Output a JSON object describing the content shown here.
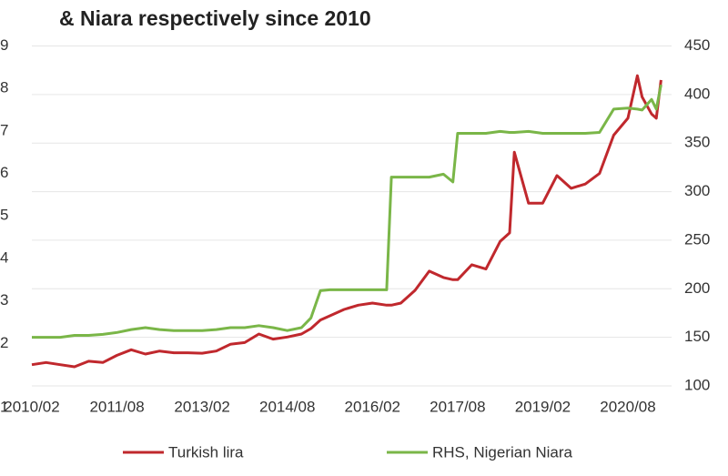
{
  "chart_data": {
    "type": "line",
    "title": "& Niara respectively since 2010",
    "x": [
      "2010/02",
      "2010/05",
      "2010/08",
      "2010/11",
      "2011/02",
      "2011/05",
      "2011/08",
      "2011/11",
      "2012/02",
      "2012/05",
      "2012/08",
      "2012/11",
      "2013/02",
      "2013/05",
      "2013/08",
      "2013/11",
      "2014/02",
      "2014/05",
      "2014/08",
      "2014/11",
      "2015/01",
      "2015/03",
      "2015/05",
      "2015/08",
      "2015/11",
      "2016/02",
      "2016/05",
      "2016/06",
      "2016/08",
      "2016/11",
      "2017/02",
      "2017/05",
      "2017/07",
      "2017/08",
      "2017/11",
      "2018/02",
      "2018/05",
      "2018/07",
      "2018/08",
      "2018/11",
      "2019/02",
      "2019/05",
      "2019/08",
      "2019/11",
      "2020/02",
      "2020/05",
      "2020/08",
      "2020/10",
      "2020/11",
      "2021/01",
      "2021/02",
      "2021/03"
    ],
    "series": [
      {
        "name": "Turkish lira",
        "color": "#c0282d",
        "values": [
          1.5,
          1.55,
          1.5,
          1.45,
          1.58,
          1.55,
          1.72,
          1.85,
          1.75,
          1.82,
          1.78,
          1.78,
          1.77,
          1.82,
          1.98,
          2.02,
          2.22,
          2.1,
          2.15,
          2.22,
          2.35,
          2.55,
          2.65,
          2.8,
          2.9,
          2.95,
          2.9,
          2.9,
          2.95,
          3.25,
          3.7,
          3.55,
          3.5,
          3.5,
          3.85,
          3.75,
          4.4,
          4.6,
          6.5,
          5.3,
          5.3,
          5.95,
          5.65,
          5.75,
          6.0,
          6.9,
          7.3,
          8.3,
          7.8,
          7.4,
          7.3,
          8.2
        ]
      },
      {
        "name": "RHS, Nigerian Niara",
        "color": "#7ab648",
        "axis": "y2",
        "values": [
          150,
          150,
          150,
          152,
          152,
          153,
          155,
          158,
          160,
          158,
          157,
          157,
          157,
          158,
          160,
          160,
          162,
          160,
          157,
          160,
          170,
          198,
          199,
          199,
          199,
          199,
          199,
          315,
          315,
          315,
          315,
          318,
          310,
          360,
          360,
          360,
          362,
          361,
          361,
          362,
          360,
          360,
          360,
          360,
          361,
          385,
          386,
          385,
          384,
          395,
          385,
          410
        ]
      }
    ],
    "xticks": [
      "2010/02",
      "2011/08",
      "2013/02",
      "2014/08",
      "2016/02",
      "2017/08",
      "2019/02",
      "2020/08"
    ],
    "ylim": [
      1,
      9
    ],
    "yticks": [
      1,
      2,
      3,
      4,
      5,
      6,
      7,
      8,
      9
    ],
    "y2lim": [
      100,
      450
    ],
    "y2ticks": [
      100,
      150,
      200,
      250,
      300,
      350,
      400,
      450
    ],
    "grid": true,
    "legend": "bottom"
  }
}
